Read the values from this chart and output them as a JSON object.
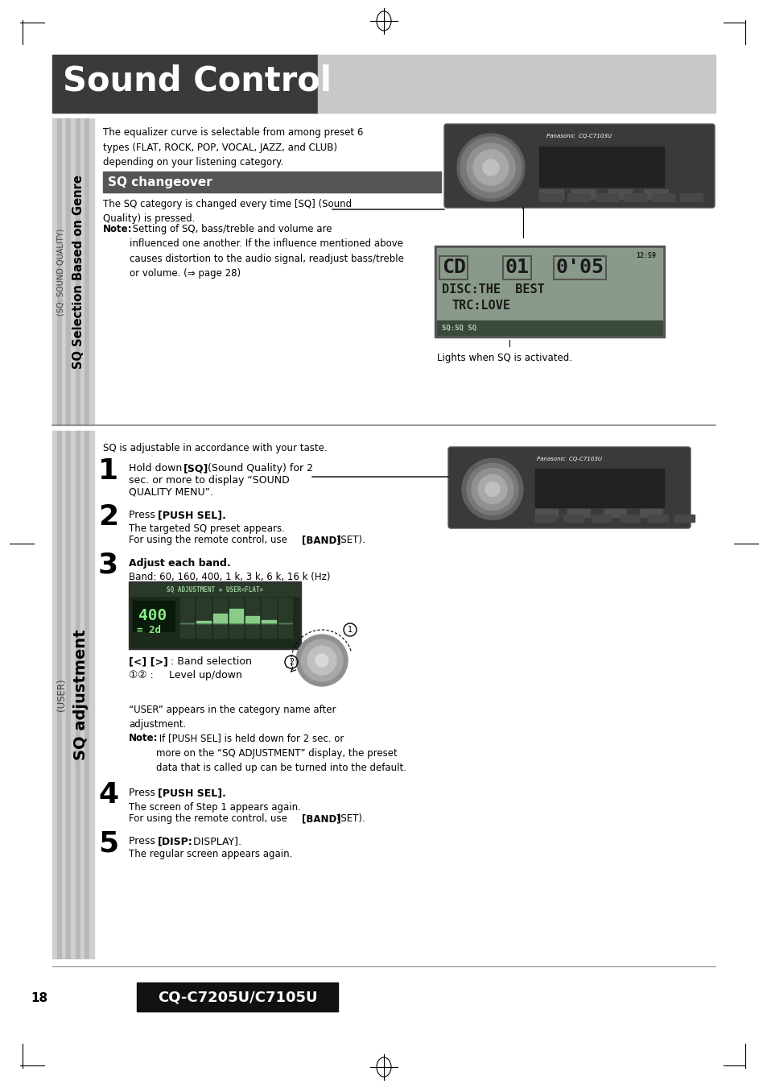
{
  "title": "Sound Control",
  "title_bg_dark": "#3a3a3a",
  "title_bg_light": "#c8c8c8",
  "title_text_color": "#ffffff",
  "page_bg": "#ffffff",
  "section1_label": "SQ Selection Based on Genre",
  "section1_sublabel": "(SQ: SOUND QUALITY)",
  "section2_label": "SQ adjustment",
  "section2_sublabel": "(USER)",
  "section1_body1": "The equalizer curve is selectable from among preset 6\ntypes (FLAT, ROCK, POP, VOCAL, JAZZ, and CLUB)\ndepending on your listening category.",
  "sq_changeover_label": "SQ changeover",
  "sq_changeover_bg": "#555555",
  "sq_changeover_text": "#ffffff",
  "section1_body2": "The SQ category is changed every time [SQ] (Sound\nQuality) is pressed.",
  "section1_note_bold": "Note:",
  "section1_note_rest": " Setting of SQ, bass/treble and volume are\ninfluenced one another. If the influence mentioned above\ncauses distortion to the audio signal, readjust bass/treble\nor volume. (⇒ page 28)",
  "lights_text": "Lights when SQ is activated.",
  "section2_intro": "SQ is adjustable in accordance with your taste.",
  "step1_num": "1",
  "step1_text_bold": "Hold down [SQ]",
  "step1_text_rest": " (Sound Quality) for 2\nsec. or more to display “SOUND\nQUALITY MENU”.",
  "step2_num": "2",
  "step2_text": "Press [PUSH SEL].",
  "step2_sub": "The targeted SQ preset appears.\nFor using the remote control, use [BAND] (SET).",
  "step3_num": "3",
  "step3_text": "Adjust each band.",
  "step3_sub": "Band: 60, 160, 400, 1 k, 3 k, 6 k, 16 k (Hz)",
  "band_selection_bold": "[<] [>]",
  "band_selection_rest": " : Band selection",
  "level_label": "①② :     Level up/down",
  "user_note1": "“USER” appears in the category name after\nadjustment.",
  "push_sel_note_bold": "Note:",
  "push_sel_note_rest": " If [PUSH SEL] is held down for 2 sec. or\nmore on the “SQ ADJUSTMENT” display, the preset\ndata that is called up can be turned into the default.",
  "step4_num": "4",
  "step4_text": "Press [PUSH SEL].",
  "step4_sub": "The screen of Step 1 appears again.\nFor using the remote control, use [BAND] (SET).",
  "step5_num": "5",
  "step5_text_bold": "Press [DISP:",
  "step5_text_rest": " DISPLAY].",
  "step5_sub": "The regular screen appears again.",
  "footer_page": "18",
  "footer_model": "CQ-C7205U/C7105U",
  "footer_model_bg": "#111111",
  "footer_model_text": "#ffffff"
}
